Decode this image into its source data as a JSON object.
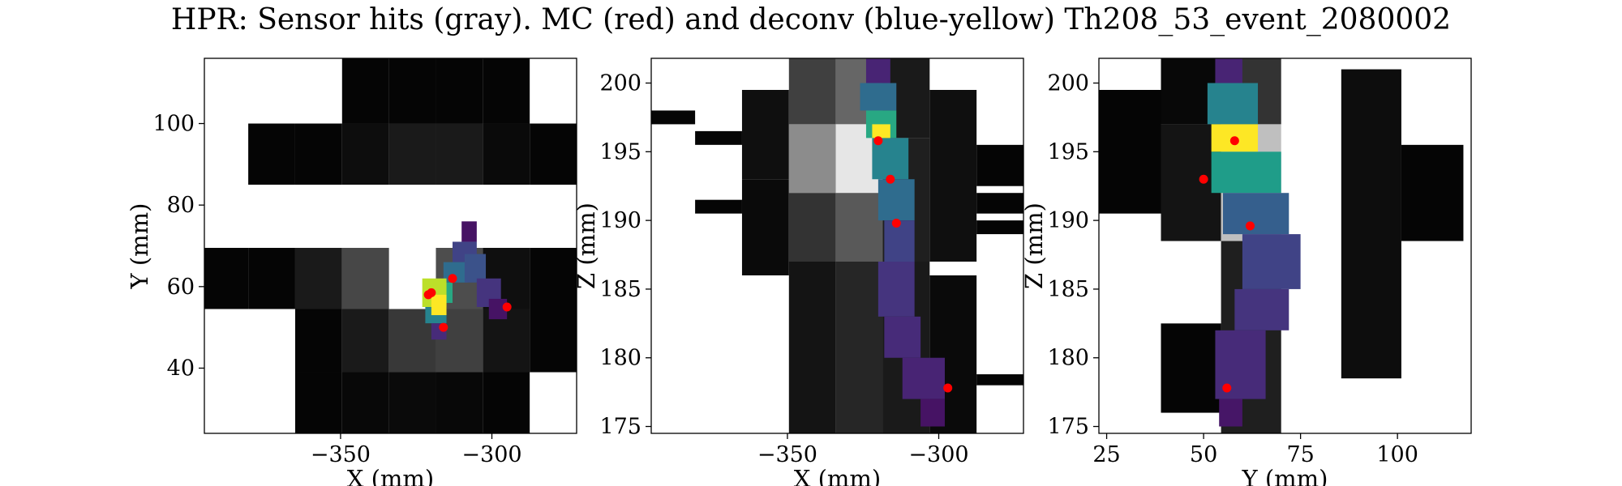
{
  "figure": {
    "title": "HPR: Sensor hits (gray). MC (red) and deconv (blue-yellow) Th208_53_event_2080002"
  },
  "colors": {
    "mc": "#ff0000",
    "deconv_colormap": "viridis",
    "sensor_colormap": "gray"
  },
  "chart_data": [
    {
      "type": "heatmap",
      "title": "",
      "xlabel": "X (mm)",
      "ylabel": "Y (mm)",
      "xlim": [
        -395,
        -272
      ],
      "ylim": [
        24,
        116
      ],
      "xticks": [
        -350,
        -300
      ],
      "xtick_labels": [
        "−350",
        "−300"
      ],
      "yticks": [
        40,
        60,
        80,
        100
      ],
      "ytick_labels": [
        "40",
        "60",
        "80",
        "100"
      ],
      "sensor_cells": [
        {
          "x0": -349.5,
          "x1": -334,
          "y0": 100,
          "y1": 116,
          "v": 0.02
        },
        {
          "x0": -334,
          "x1": -318.5,
          "y0": 100,
          "y1": 116,
          "v": 0.02
        },
        {
          "x0": -318.5,
          "x1": -303,
          "y0": 100,
          "y1": 116,
          "v": 0.02
        },
        {
          "x0": -303,
          "x1": -287.5,
          "y0": 100,
          "y1": 116,
          "v": 0.02
        },
        {
          "x0": -380.5,
          "x1": -365,
          "y0": 85,
          "y1": 100,
          "v": 0.02
        },
        {
          "x0": -365,
          "x1": -349.5,
          "y0": 85,
          "y1": 100,
          "v": 0.02
        },
        {
          "x0": -349.5,
          "x1": -334,
          "y0": 85,
          "y1": 100,
          "v": 0.05
        },
        {
          "x0": -334,
          "x1": -318.5,
          "y0": 85,
          "y1": 100,
          "v": 0.1
        },
        {
          "x0": -318.5,
          "x1": -303,
          "y0": 85,
          "y1": 100,
          "v": 0.1
        },
        {
          "x0": -303,
          "x1": -287.5,
          "y0": 85,
          "y1": 100,
          "v": 0.04
        },
        {
          "x0": -287.5,
          "x1": -272,
          "y0": 85,
          "y1": 100,
          "v": 0.02
        },
        {
          "x0": -395,
          "x1": -380.5,
          "y0": 54.5,
          "y1": 69.5,
          "v": 0.02
        },
        {
          "x0": -380.5,
          "x1": -365,
          "y0": 54.5,
          "y1": 69.5,
          "v": 0.02
        },
        {
          "x0": -365,
          "x1": -349.5,
          "y0": 54.5,
          "y1": 69.5,
          "v": 0.1
        },
        {
          "x0": -349.5,
          "x1": -334,
          "y0": 54.5,
          "y1": 69.5,
          "v": 0.28
        },
        {
          "x0": -318.5,
          "x1": -303,
          "y0": 54.5,
          "y1": 69.5,
          "v": 0.3
        },
        {
          "x0": -303,
          "x1": -287.5,
          "y0": 54.5,
          "y1": 69.5,
          "v": 0.06
        },
        {
          "x0": -287.5,
          "x1": -272,
          "y0": 54.5,
          "y1": 69.5,
          "v": 0.02
        },
        {
          "x0": -365,
          "x1": -349.5,
          "y0": 39,
          "y1": 54.5,
          "v": 0.02
        },
        {
          "x0": -349.5,
          "x1": -334,
          "y0": 39,
          "y1": 54.5,
          "v": 0.1
        },
        {
          "x0": -334,
          "x1": -318.5,
          "y0": 39,
          "y1": 54.5,
          "v": 0.22
        },
        {
          "x0": -318.5,
          "x1": -303,
          "y0": 39,
          "y1": 54.5,
          "v": 0.25
        },
        {
          "x0": -303,
          "x1": -287.5,
          "y0": 39,
          "y1": 54.5,
          "v": 0.08
        },
        {
          "x0": -287.5,
          "x1": -272,
          "y0": 39,
          "y1": 54.5,
          "v": 0.02
        },
        {
          "x0": -365,
          "x1": -349.5,
          "y0": 24,
          "y1": 39,
          "v": 0.02
        },
        {
          "x0": -349.5,
          "x1": -334,
          "y0": 24,
          "y1": 39,
          "v": 0.03
        },
        {
          "x0": -334,
          "x1": -318.5,
          "y0": 24,
          "y1": 39,
          "v": 0.04
        },
        {
          "x0": -318.5,
          "x1": -303,
          "y0": 24,
          "y1": 39,
          "v": 0.03
        },
        {
          "x0": -303,
          "x1": -287.5,
          "y0": 24,
          "y1": 39,
          "v": 0.02
        }
      ],
      "deconv_cells": [
        {
          "x0": -310,
          "x1": -305,
          "y0": 71,
          "y1": 76,
          "v": 0.05
        },
        {
          "x0": -313,
          "x1": -305,
          "y0": 66,
          "y1": 71,
          "v": 0.2
        },
        {
          "x0": -316,
          "x1": -308,
          "y0": 61,
          "y1": 66,
          "v": 0.35
        },
        {
          "x0": -320,
          "x1": -313,
          "y0": 56,
          "y1": 61,
          "v": 0.6
        },
        {
          "x0": -322,
          "x1": -315,
          "y0": 51,
          "y1": 56,
          "v": 0.45
        },
        {
          "x0": -320,
          "x1": -315,
          "y0": 47,
          "y1": 51,
          "v": 0.12
        },
        {
          "x0": -309,
          "x1": -302,
          "y0": 61,
          "y1": 68,
          "v": 0.25
        },
        {
          "x0": -305,
          "x1": -297,
          "y0": 55,
          "y1": 62,
          "v": 0.15
        },
        {
          "x0": -301,
          "x1": -295,
          "y0": 52,
          "y1": 57,
          "v": 0.05
        },
        {
          "x0": -323,
          "x1": -315,
          "y0": 55,
          "y1": 62,
          "v": 0.9
        },
        {
          "x0": -320,
          "x1": -315,
          "y0": 53,
          "y1": 58,
          "v": 1.0
        }
      ],
      "mc_points": [
        {
          "x": -320,
          "y": 58.5
        },
        {
          "x": -321,
          "y": 58
        },
        {
          "x": -313,
          "y": 62
        },
        {
          "x": -316,
          "y": 50
        },
        {
          "x": -295,
          "y": 55
        }
      ]
    },
    {
      "type": "heatmap",
      "title": "",
      "xlabel": "X (mm)",
      "ylabel": "Z (mm)",
      "xlim": [
        -395,
        -272
      ],
      "ylim": [
        174.5,
        201.8
      ],
      "xticks": [
        -350,
        -300
      ],
      "xtick_labels": [
        "−350",
        "−300"
      ],
      "yticks": [
        175,
        180,
        185,
        190,
        195,
        200
      ],
      "ytick_labels": [
        "175",
        "180",
        "185",
        "190",
        "195",
        "200"
      ],
      "sensor_cells": [
        {
          "x0": -395,
          "x1": -380.5,
          "y0": 197,
          "y1": 198,
          "v": 0.02
        },
        {
          "x0": -380.5,
          "x1": -365,
          "y0": 195.5,
          "y1": 196.5,
          "v": 0.02
        },
        {
          "x0": -380.5,
          "x1": -365,
          "y0": 190.5,
          "y1": 191.5,
          "v": 0.02
        },
        {
          "x0": -365,
          "x1": -349.5,
          "y0": 193,
          "y1": 199.5,
          "v": 0.06
        },
        {
          "x0": -365,
          "x1": -349.5,
          "y0": 186,
          "y1": 193,
          "v": 0.04
        },
        {
          "x0": -349.5,
          "x1": -334,
          "y0": 197,
          "y1": 202,
          "v": 0.25
        },
        {
          "x0": -349.5,
          "x1": -334,
          "y0": 192,
          "y1": 197,
          "v": 0.55
        },
        {
          "x0": -349.5,
          "x1": -334,
          "y0": 187,
          "y1": 192,
          "v": 0.2
        },
        {
          "x0": -349.5,
          "x1": -334,
          "y0": 174.5,
          "y1": 187,
          "v": 0.08
        },
        {
          "x0": -334,
          "x1": -318.5,
          "y0": 197,
          "y1": 202,
          "v": 0.4
        },
        {
          "x0": -334,
          "x1": -318.5,
          "y0": 192,
          "y1": 197,
          "v": 0.9
        },
        {
          "x0": -334,
          "x1": -318.5,
          "y0": 187,
          "y1": 192,
          "v": 0.35
        },
        {
          "x0": -334,
          "x1": -318.5,
          "y0": 174.5,
          "y1": 187,
          "v": 0.15
        },
        {
          "x0": -318.5,
          "x1": -303,
          "y0": 196,
          "y1": 202,
          "v": 0.1
        },
        {
          "x0": -318.5,
          "x1": -303,
          "y0": 187,
          "y1": 196,
          "v": 0.12
        },
        {
          "x0": -318.5,
          "x1": -303,
          "y0": 174.5,
          "y1": 187,
          "v": 0.1
        },
        {
          "x0": -303,
          "x1": -287.5,
          "y0": 187,
          "y1": 199.5,
          "v": 0.06
        },
        {
          "x0": -303,
          "x1": -287.5,
          "y0": 174.5,
          "y1": 186,
          "v": 0.04
        },
        {
          "x0": -287.5,
          "x1": -272,
          "y0": 192.5,
          "y1": 195.5,
          "v": 0.02
        },
        {
          "x0": -287.5,
          "x1": -272,
          "y0": 190.5,
          "y1": 192,
          "v": 0.02
        },
        {
          "x0": -287.5,
          "x1": -272,
          "y0": 189,
          "y1": 190,
          "v": 0.02
        },
        {
          "x0": -287.5,
          "x1": -272,
          "y0": 178,
          "y1": 178.8,
          "v": 0.02
        }
      ],
      "deconv_cells": [
        {
          "x0": -324,
          "x1": -316,
          "y0": 200,
          "y1": 202,
          "v": 0.1
        },
        {
          "x0": -326,
          "x1": -314,
          "y0": 198,
          "y1": 200,
          "v": 0.35
        },
        {
          "x0": -324,
          "x1": -314,
          "y0": 196,
          "y1": 198,
          "v": 0.6
        },
        {
          "x0": -322,
          "x1": -316,
          "y0": 195,
          "y1": 197,
          "v": 1.0
        },
        {
          "x0": -322,
          "x1": -310,
          "y0": 193,
          "y1": 196,
          "v": 0.45
        },
        {
          "x0": -320,
          "x1": -308,
          "y0": 190,
          "y1": 193,
          "v": 0.35
        },
        {
          "x0": -318,
          "x1": -308,
          "y0": 187,
          "y1": 190,
          "v": 0.2
        },
        {
          "x0": -320,
          "x1": -308,
          "y0": 183,
          "y1": 187,
          "v": 0.15
        },
        {
          "x0": -318,
          "x1": -306,
          "y0": 180,
          "y1": 183,
          "v": 0.12
        },
        {
          "x0": -312,
          "x1": -298,
          "y0": 177,
          "y1": 180,
          "v": 0.1
        },
        {
          "x0": -306,
          "x1": -298,
          "y0": 175,
          "y1": 177,
          "v": 0.05
        }
      ],
      "mc_points": [
        {
          "x": -320,
          "y": 195.8
        },
        {
          "x": -316,
          "y": 193
        },
        {
          "x": -314,
          "y": 189.8
        },
        {
          "x": -297,
          "y": 177.8
        }
      ]
    },
    {
      "type": "heatmap",
      "title": "",
      "xlabel": "Y (mm)",
      "ylabel": "Z (mm)",
      "xlim": [
        23,
        119
      ],
      "ylim": [
        174.5,
        201.8
      ],
      "xticks": [
        25,
        50,
        75,
        100
      ],
      "xtick_labels": [
        "25",
        "50",
        "75",
        "100"
      ],
      "yticks": [
        175,
        180,
        185,
        190,
        195,
        200
      ],
      "ytick_labels": [
        "175",
        "180",
        "185",
        "190",
        "195",
        "200"
      ],
      "sensor_cells": [
        {
          "x0": 23,
          "x1": 39,
          "y0": 190.5,
          "y1": 199.5,
          "v": 0.02
        },
        {
          "x0": 39,
          "x1": 54.5,
          "y0": 197,
          "y1": 202,
          "v": 0.03
        },
        {
          "x0": 39,
          "x1": 54.5,
          "y0": 188.5,
          "y1": 197,
          "v": 0.08
        },
        {
          "x0": 54.5,
          "x1": 70,
          "y0": 197,
          "y1": 202,
          "v": 0.2
        },
        {
          "x0": 54.5,
          "x1": 70,
          "y0": 188.5,
          "y1": 197,
          "v": 0.75
        },
        {
          "x0": 54.5,
          "x1": 70,
          "y0": 174.5,
          "y1": 188.5,
          "v": 0.12
        },
        {
          "x0": 39,
          "x1": 54.5,
          "y0": 176,
          "y1": 182.5,
          "v": 0.02
        },
        {
          "x0": 85.5,
          "x1": 101,
          "y0": 178.5,
          "y1": 201,
          "v": 0.05
        },
        {
          "x0": 101,
          "x1": 117,
          "y0": 188.5,
          "y1": 195.5,
          "v": 0.02
        }
      ],
      "deconv_cells": [
        {
          "x0": 53,
          "x1": 60,
          "y0": 200,
          "y1": 202,
          "v": 0.1
        },
        {
          "x0": 51,
          "x1": 64,
          "y0": 197,
          "y1": 200,
          "v": 0.45
        },
        {
          "x0": 52,
          "x1": 64,
          "y0": 195,
          "y1": 197,
          "v": 1.0
        },
        {
          "x0": 52,
          "x1": 70,
          "y0": 192,
          "y1": 195,
          "v": 0.55
        },
        {
          "x0": 55,
          "x1": 72,
          "y0": 189,
          "y1": 192,
          "v": 0.3
        },
        {
          "x0": 60,
          "x1": 75,
          "y0": 185,
          "y1": 189,
          "v": 0.2
        },
        {
          "x0": 58,
          "x1": 72,
          "y0": 182,
          "y1": 185,
          "v": 0.15
        },
        {
          "x0": 53,
          "x1": 66,
          "y0": 177,
          "y1": 182,
          "v": 0.12
        },
        {
          "x0": 54,
          "x1": 60,
          "y0": 175,
          "y1": 177,
          "v": 0.06
        }
      ],
      "mc_points": [
        {
          "x": 50,
          "y": 193
        },
        {
          "x": 58,
          "y": 195.8
        },
        {
          "x": 62,
          "y": 189.6
        },
        {
          "x": 56,
          "y": 177.8
        }
      ]
    }
  ]
}
